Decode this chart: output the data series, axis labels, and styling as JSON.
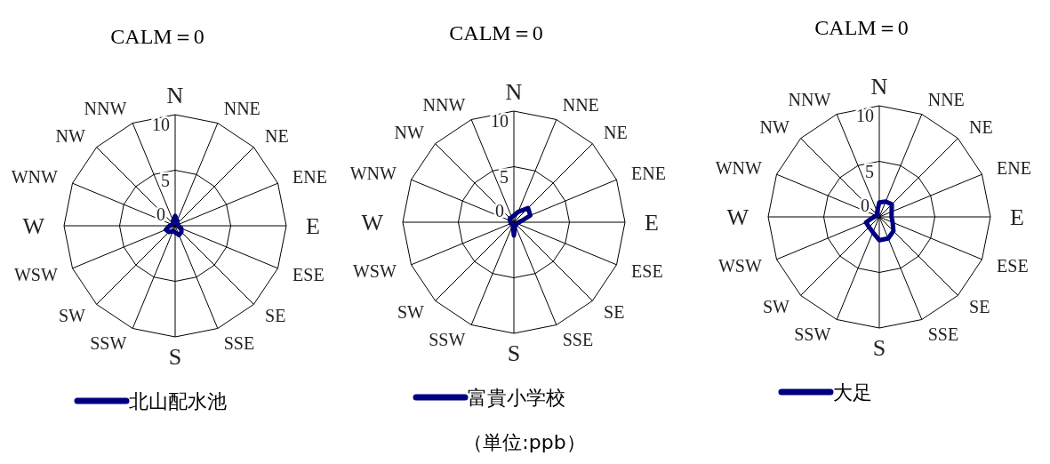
{
  "chart_data": [
    {
      "type": "radar",
      "title": "CALM＝0",
      "categories": [
        "N",
        "NNE",
        "NE",
        "ENE",
        "E",
        "ESE",
        "SE",
        "SSE",
        "S",
        "SSW",
        "SW",
        "WSW",
        "W",
        "WNW",
        "NW",
        "NNW"
      ],
      "ylim": [
        0,
        10
      ],
      "yticks": [
        0,
        5,
        10
      ],
      "legend": "bottom",
      "series": [
        {
          "name": "北山配水池",
          "color": "#000080",
          "values": [
            0.9,
            0.5,
            0.3,
            0.3,
            0.3,
            0.6,
            0.8,
            0.9,
            0.6,
            0.5,
            0.8,
            0.9,
            0.5,
            0.3,
            0.3,
            0.5
          ]
        }
      ]
    },
    {
      "type": "radar",
      "title": "CALM＝0",
      "categories": [
        "N",
        "NNE",
        "NE",
        "ENE",
        "E",
        "ESE",
        "SE",
        "SSE",
        "S",
        "SSW",
        "SW",
        "WSW",
        "W",
        "WNW",
        "NW",
        "NNW"
      ],
      "ylim": [
        0,
        10
      ],
      "yticks": [
        0,
        5,
        10
      ],
      "legend": "bottom",
      "annotations": [
        "（単位:ppb）"
      ],
      "series": [
        {
          "name": "富貴小学校",
          "color": "#000080",
          "values": [
            0.6,
            1.0,
            1.8,
            1.6,
            0.5,
            0.3,
            0.3,
            0.3,
            1.2,
            0.3,
            0.2,
            0.3,
            0.3,
            0.4,
            0.5,
            0.5
          ]
        }
      ]
    },
    {
      "type": "radar",
      "title": "CALM＝0",
      "categories": [
        "N",
        "NNE",
        "NE",
        "ENE",
        "E",
        "ESE",
        "SE",
        "SSE",
        "S",
        "SSW",
        "SW",
        "WSW",
        "W",
        "WNW",
        "NW",
        "NNW"
      ],
      "ylim": [
        0,
        10
      ],
      "yticks": [
        0,
        5,
        10
      ],
      "legend": "bottom",
      "series": [
        {
          "name": "大足",
          "color": "#000080",
          "values": [
            1.3,
            1.5,
            1.6,
            1.2,
            1.1,
            1.3,
            1.8,
            2.1,
            2.1,
            1.5,
            1.3,
            1.3,
            0.5,
            0.3,
            0.2,
            0.5
          ]
        }
      ]
    }
  ]
}
